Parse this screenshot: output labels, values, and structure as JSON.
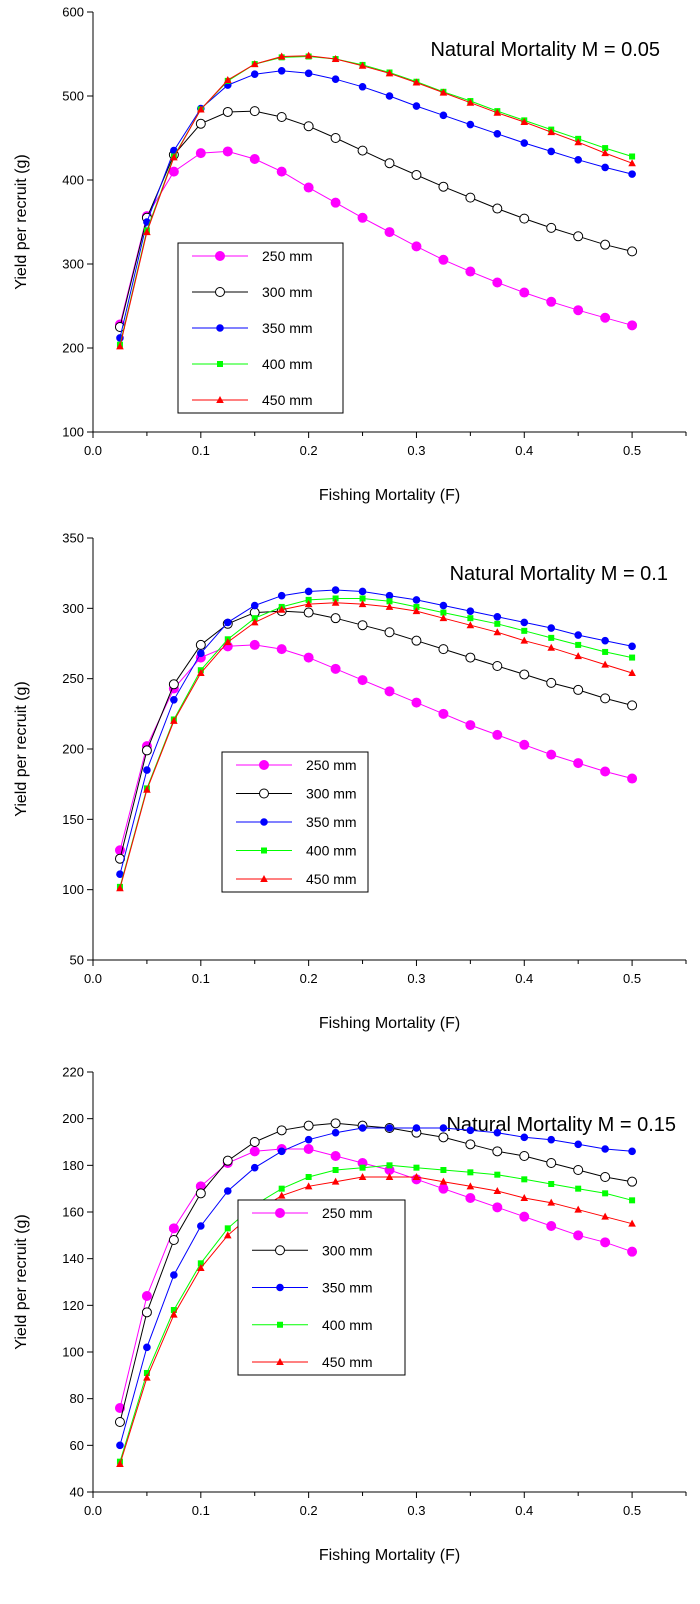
{
  "chart_data": [
    {
      "type": "line",
      "title": "Natural Mortality M = 0.05",
      "xlabel": "Fishing Mortality (F)",
      "ylabel": "Yield per recruit (g)",
      "xlim": [
        0.0,
        0.55
      ],
      "ylim": [
        100,
        600
      ],
      "xticks": [
        "0.0",
        "0.1",
        "0.2",
        "0.3",
        "0.4",
        "0.5"
      ],
      "yticks": [
        "100",
        "200",
        "300",
        "400",
        "500",
        "600"
      ],
      "legend_position": "lower-left",
      "x": [
        0.025,
        0.05,
        0.075,
        0.1,
        0.125,
        0.15,
        0.175,
        0.2,
        0.225,
        0.25,
        0.275,
        0.3,
        0.325,
        0.35,
        0.375,
        0.4,
        0.425,
        0.45,
        0.475,
        0.5
      ],
      "series": [
        {
          "name": "250 mm",
          "color": "#ff00ff",
          "marker": "circle-filled",
          "values": [
            228,
            357,
            410,
            432,
            434,
            425,
            410,
            391,
            373,
            355,
            338,
            321,
            305,
            291,
            278,
            266,
            255,
            245,
            236,
            227
          ]
        },
        {
          "name": "300 mm",
          "color": "#000000",
          "marker": "circle-open",
          "values": [
            225,
            355,
            430,
            467,
            481,
            482,
            475,
            464,
            450,
            435,
            420,
            406,
            392,
            379,
            366,
            354,
            343,
            333,
            323,
            315
          ]
        },
        {
          "name": "350 mm",
          "color": "#0000ff",
          "marker": "circle-filled-small",
          "values": [
            212,
            350,
            435,
            485,
            513,
            526,
            530,
            527,
            520,
            511,
            500,
            488,
            477,
            466,
            455,
            444,
            434,
            424,
            415,
            407
          ]
        },
        {
          "name": "400 mm",
          "color": "#00ff00",
          "marker": "square",
          "values": [
            204,
            340,
            428,
            484,
            518,
            538,
            546,
            547,
            544,
            537,
            528,
            517,
            505,
            494,
            482,
            471,
            460,
            449,
            438,
            428
          ]
        },
        {
          "name": "450 mm",
          "color": "#ff0000",
          "marker": "triangle",
          "values": [
            202,
            338,
            427,
            484,
            519,
            538,
            547,
            548,
            544,
            536,
            527,
            516,
            504,
            492,
            480,
            469,
            457,
            445,
            432,
            420
          ]
        }
      ]
    },
    {
      "type": "line",
      "title": "Natural Mortality M = 0.1",
      "xlabel": "Fishing Mortality (F)",
      "ylabel": "Yield per recruit (g)",
      "xlim": [
        0.0,
        0.55
      ],
      "ylim": [
        50,
        350
      ],
      "xticks": [
        "0.0",
        "0.1",
        "0.2",
        "0.3",
        "0.4",
        "0.5"
      ],
      "yticks": [
        "50",
        "100",
        "150",
        "200",
        "250",
        "300",
        "350"
      ],
      "legend_position": "lower-left",
      "x": [
        0.025,
        0.05,
        0.075,
        0.1,
        0.125,
        0.15,
        0.175,
        0.2,
        0.225,
        0.25,
        0.275,
        0.3,
        0.325,
        0.35,
        0.375,
        0.4,
        0.425,
        0.45,
        0.475,
        0.5
      ],
      "series": [
        {
          "name": "250 mm",
          "color": "#ff00ff",
          "marker": "circle-filled",
          "values": [
            128,
            202,
            243,
            265,
            273,
            274,
            271,
            265,
            257,
            249,
            241,
            233,
            225,
            217,
            210,
            203,
            196,
            190,
            184,
            179
          ]
        },
        {
          "name": "300 mm",
          "color": "#000000",
          "marker": "circle-open",
          "values": [
            122,
            199,
            246,
            274,
            289,
            297,
            298,
            297,
            293,
            288,
            283,
            277,
            271,
            265,
            259,
            253,
            247,
            242,
            236,
            231
          ]
        },
        {
          "name": "350 mm",
          "color": "#0000ff",
          "marker": "circle-filled-small",
          "values": [
            111,
            185,
            235,
            268,
            290,
            302,
            309,
            312,
            313,
            312,
            309,
            306,
            302,
            298,
            294,
            290,
            286,
            281,
            277,
            273
          ]
        },
        {
          "name": "400 mm",
          "color": "#00ff00",
          "marker": "square",
          "values": [
            102,
            172,
            221,
            256,
            278,
            293,
            301,
            306,
            307,
            307,
            305,
            301,
            297,
            293,
            289,
            284,
            279,
            274,
            269,
            265
          ]
        },
        {
          "name": "450 mm",
          "color": "#ff0000",
          "marker": "triangle",
          "values": [
            101,
            171,
            220,
            254,
            276,
            290,
            299,
            303,
            304,
            303,
            301,
            298,
            293,
            288,
            283,
            277,
            272,
            266,
            260,
            254
          ]
        }
      ]
    },
    {
      "type": "line",
      "title": "Natural Mortality M = 0.15",
      "xlabel": "Fishing Mortality (F)",
      "ylabel": "Yield per recruit (g)",
      "xlim": [
        0.0,
        0.55
      ],
      "ylim": [
        40,
        220
      ],
      "xticks": [
        "0.0",
        "0.1",
        "0.2",
        "0.3",
        "0.4",
        "0.5"
      ],
      "yticks": [
        "40",
        "60",
        "80",
        "100",
        "120",
        "140",
        "160",
        "180",
        "200",
        "220"
      ],
      "legend_position": "lower-left",
      "x": [
        0.025,
        0.05,
        0.075,
        0.1,
        0.125,
        0.15,
        0.175,
        0.2,
        0.225,
        0.25,
        0.275,
        0.3,
        0.325,
        0.35,
        0.375,
        0.4,
        0.425,
        0.45,
        0.475,
        0.5
      ],
      "series": [
        {
          "name": "250 mm",
          "color": "#ff00ff",
          "marker": "circle-filled",
          "values": [
            76,
            124,
            153,
            171,
            181,
            186,
            187,
            187,
            184,
            181,
            178,
            174,
            170,
            166,
            162,
            158,
            154,
            150,
            147,
            143
          ]
        },
        {
          "name": "300 mm",
          "color": "#000000",
          "marker": "circle-open",
          "values": [
            70,
            117,
            148,
            168,
            182,
            190,
            195,
            197,
            198,
            197,
            196,
            194,
            192,
            189,
            186,
            184,
            181,
            178,
            175,
            173
          ]
        },
        {
          "name": "350 mm",
          "color": "#0000ff",
          "marker": "circle-filled-small",
          "values": [
            60,
            102,
            133,
            154,
            169,
            179,
            186,
            191,
            194,
            196,
            196,
            196,
            196,
            195,
            194,
            192,
            191,
            189,
            187,
            186
          ]
        },
        {
          "name": "400 mm",
          "color": "#00ff00",
          "marker": "square",
          "values": [
            53,
            91,
            118,
            138,
            153,
            163,
            170,
            175,
            178,
            179,
            180,
            179,
            178,
            177,
            176,
            174,
            172,
            170,
            168,
            165
          ]
        },
        {
          "name": "450 mm",
          "color": "#ff0000",
          "marker": "triangle",
          "values": [
            52,
            89,
            116,
            136,
            150,
            160,
            167,
            171,
            173,
            175,
            175,
            175,
            173,
            171,
            169,
            166,
            164,
            161,
            158,
            155
          ]
        }
      ]
    }
  ]
}
